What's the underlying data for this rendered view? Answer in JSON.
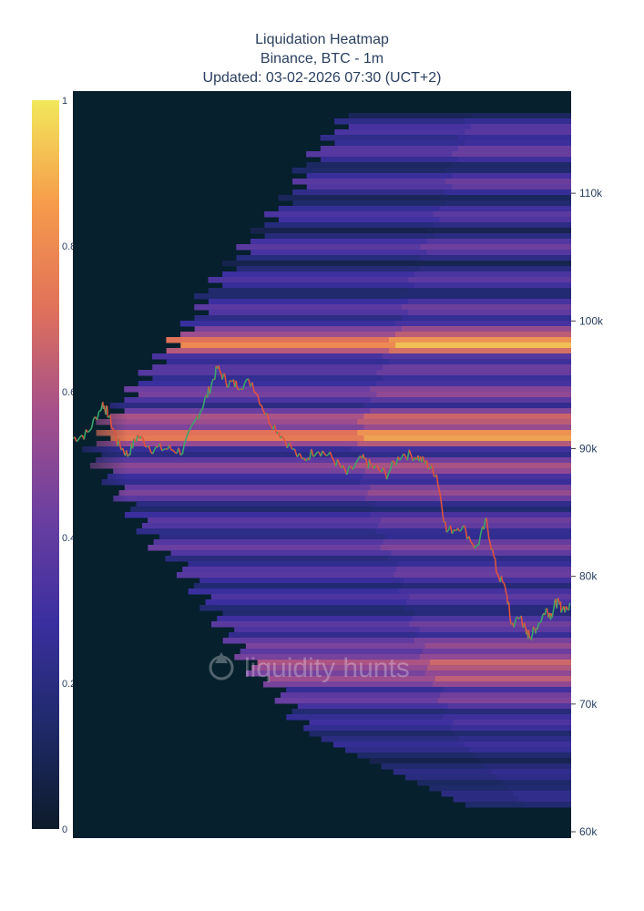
{
  "title": {
    "line1": "Liquidation Heatmap",
    "line2": "Binance, BTC - 1m",
    "line3": "Updated: 03-02-2026 07:30 (UCT+2)"
  },
  "watermark": "liquidity hunts",
  "colors": {
    "scale": [
      "#0d1b2a",
      "#1f2a6b",
      "#3b2fa0",
      "#6b3fa0",
      "#a4508b",
      "#e0715a",
      "#f69b4b",
      "#f2e85a"
    ],
    "price_up": "#3aa66a",
    "price_down": "#e0533d"
  },
  "chart_data": {
    "type": "heatmap",
    "title": "Liquidation Heatmap",
    "subtitle": "Binance, BTC - 1m",
    "updated": "Updated: 03-02-2026 07:30 (UCT+2)",
    "y_axis": {
      "side": "right",
      "ticks": [
        60000,
        70000,
        80000,
        90000,
        100000,
        110000
      ],
      "tick_labels": [
        "60k",
        "70k",
        "80k",
        "90k",
        "100k",
        "110k"
      ],
      "range": [
        60000,
        118000
      ]
    },
    "colorbar": {
      "min": 0,
      "max": 1,
      "ticks": [
        0,
        0.2,
        0.4,
        0.6,
        0.8,
        1
      ],
      "tick_labels": [
        "0",
        "0.2",
        "0.4",
        "0.6",
        "0.8",
        "1"
      ]
    },
    "price_series": {
      "t": [
        0,
        0.03,
        0.06,
        0.07,
        0.09,
        0.11,
        0.13,
        0.16,
        0.19,
        0.22,
        0.25,
        0.27,
        0.29,
        0.31,
        0.33,
        0.36,
        0.39,
        0.42,
        0.46,
        0.49,
        0.52,
        0.55,
        0.58,
        0.6,
        0.63,
        0.66,
        0.69,
        0.71,
        0.73,
        0.75,
        0.78,
        0.81,
        0.83,
        0.85,
        0.87,
        0.88,
        0.9,
        0.91,
        0.92,
        0.93,
        0.95,
        0.96,
        0.97,
        0.98,
        1.0
      ],
      "price": [
        90800,
        91200,
        93500,
        92800,
        90500,
        89500,
        91000,
        90000,
        90000,
        89800,
        92500,
        94200,
        96300,
        95200,
        95000,
        95200,
        92500,
        91000,
        89000,
        90000,
        89300,
        88000,
        89200,
        88600,
        88000,
        89600,
        89400,
        88800,
        88000,
        83500,
        84000,
        82200,
        84300,
        80500,
        78800,
        76200,
        76800,
        75500,
        75400,
        76000,
        77400,
        77000,
        78000,
        77600,
        77500
      ]
    },
    "liquidation_bands": [
      {
        "price": 98400,
        "intensity": 0.95
      },
      {
        "price": 91200,
        "intensity": 0.9
      },
      {
        "price": 99200,
        "intensity": 0.65
      },
      {
        "price": 92600,
        "intensity": 0.7
      },
      {
        "price": 88800,
        "intensity": 0.6
      },
      {
        "price": 86800,
        "intensity": 0.55
      },
      {
        "price": 94600,
        "intensity": 0.55
      },
      {
        "price": 96400,
        "intensity": 0.45
      },
      {
        "price": 101200,
        "intensity": 0.45
      },
      {
        "price": 103500,
        "intensity": 0.4
      },
      {
        "price": 106000,
        "intensity": 0.45
      },
      {
        "price": 108500,
        "intensity": 0.4
      },
      {
        "price": 111000,
        "intensity": 0.45
      },
      {
        "price": 113500,
        "intensity": 0.45
      },
      {
        "price": 115200,
        "intensity": 0.4
      },
      {
        "price": 84500,
        "intensity": 0.45
      },
      {
        "price": 82500,
        "intensity": 0.5
      },
      {
        "price": 80500,
        "intensity": 0.45
      },
      {
        "price": 78600,
        "intensity": 0.4
      },
      {
        "price": 76400,
        "intensity": 0.45
      },
      {
        "price": 74800,
        "intensity": 0.55
      },
      {
        "price": 73400,
        "intensity": 0.7
      },
      {
        "price": 72200,
        "intensity": 0.65
      },
      {
        "price": 70600,
        "intensity": 0.5
      },
      {
        "price": 68800,
        "intensity": 0.35
      },
      {
        "price": 67000,
        "intensity": 0.3
      },
      {
        "price": 64800,
        "intensity": 0.25
      },
      {
        "price": 63000,
        "intensity": 0.25
      }
    ]
  }
}
